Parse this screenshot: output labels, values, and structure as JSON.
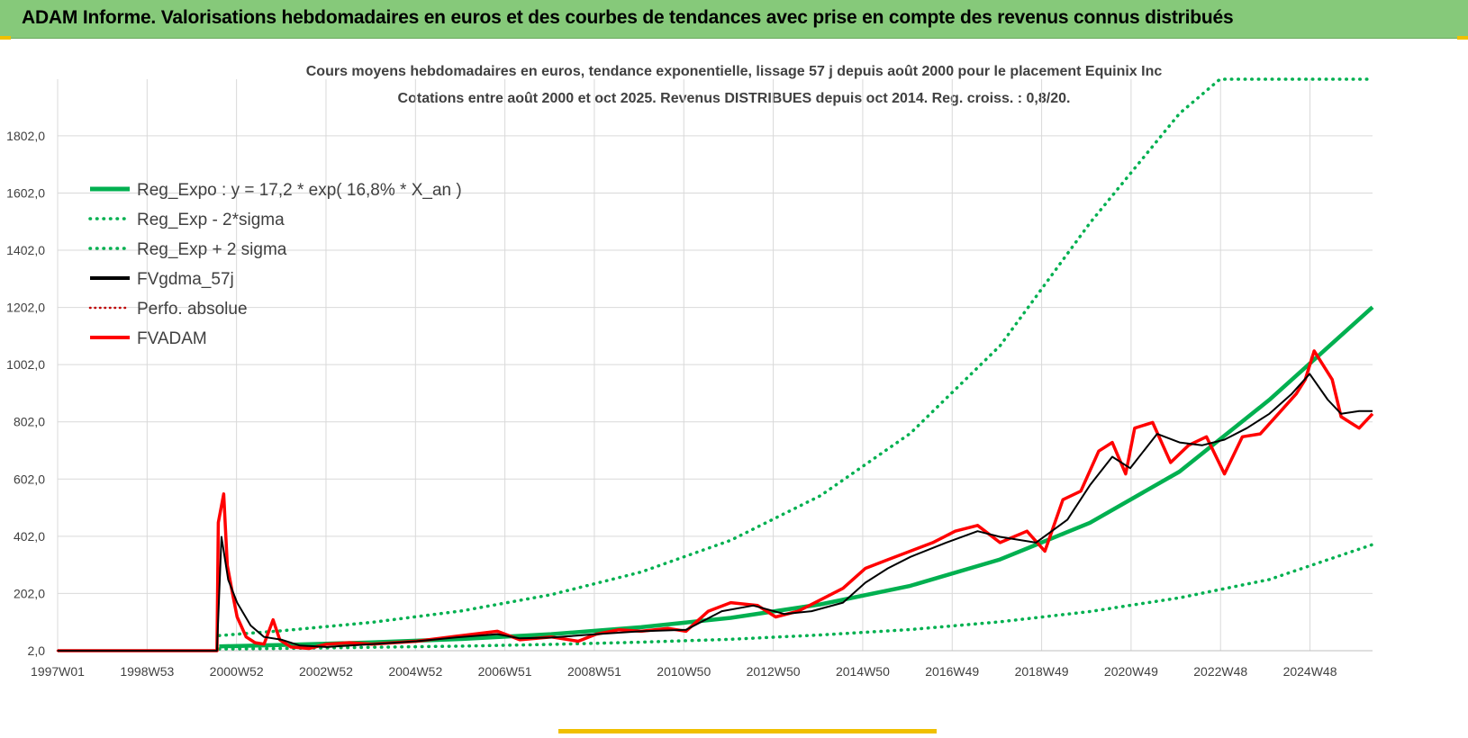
{
  "header": {
    "title": "ADAM Informe. Valorisations hebdomadaires en euros et des courbes de tendances avec prise en compte des revenus connus distribués"
  },
  "colors": {
    "header_bg": "#86c97a",
    "reg_green": "#00b050",
    "fv_red": "#ff0000",
    "smooth_black": "#000000",
    "perfo_red": "#c00000",
    "grid": "#d9d9d9"
  },
  "chart_data": {
    "type": "line",
    "title": "Cours moyens hebdomadaires en euros, tendance exponentielle, lissage 57 j depuis août 2000 pour le placement Equinix Inc",
    "subtitle": "Cotations entre août 2000 et oct 2025. Revenus DISTRIBUES depuis oct 2014. Reg. croiss. : 0,8/20.",
    "xlabel": "",
    "ylabel": "",
    "x_tick_labels": [
      "1997W01",
      "1998W53",
      "2000W52",
      "2002W52",
      "2004W52",
      "2006W51",
      "2008W51",
      "2010W50",
      "2012W50",
      "2014W50",
      "2016W49",
      "2018W49",
      "2020W49",
      "2022W48",
      "2024W48"
    ],
    "y_tick_labels": [
      "2,0",
      "202,0",
      "402,0",
      "602,0",
      "802,0",
      "1002,0",
      "1202,0",
      "1402,0",
      "1602,0",
      "1802,0"
    ],
    "xlim": [
      1997.0,
      2026.3
    ],
    "ylim": [
      2,
      2000
    ],
    "grid": true,
    "legend_position": "top-left",
    "series": [
      {
        "name": "Reg_Expo : y = 17,2 * exp( 16,8% *  X_an )",
        "style": "solid",
        "color": "#00b050",
        "x": [
          2000.6,
          2002,
          2004,
          2006,
          2008,
          2010,
          2012,
          2014,
          2016,
          2018,
          2020,
          2022,
          2024,
          2026.3
        ],
        "values": [
          17,
          22,
          31,
          43,
          60,
          84,
          117,
          164,
          229,
          321,
          449,
          628,
          879,
          1203
        ]
      },
      {
        "name": "Reg_Exp - 2*sigma",
        "style": "dotted",
        "color": "#00b050",
        "x": [
          2000.6,
          2002,
          2004,
          2006,
          2008,
          2010,
          2012,
          2014,
          2016,
          2018,
          2020,
          2022,
          2024,
          2026.3
        ],
        "values": [
          8,
          10,
          14,
          18,
          24,
          32,
          42,
          57,
          76,
          103,
          139,
          187,
          251,
          373
        ]
      },
      {
        "name": "Reg_Exp + 2 sigma",
        "style": "dotted",
        "color": "#00b050",
        "x": [
          2000.6,
          2002,
          2004,
          2006,
          2008,
          2010,
          2012,
          2014,
          2016,
          2018,
          2020,
          2022,
          2022.9,
          2026.3
        ],
        "values": [
          55,
          72,
          101,
          141,
          198,
          277,
          388,
          544,
          762,
          1068,
          1497,
          1880,
          2000,
          2000
        ]
      },
      {
        "name": "FVgdma_57j",
        "style": "solid",
        "color": "#000000",
        "x": [
          1997.0,
          2000.55,
          2000.65,
          2000.8,
          2001.0,
          2001.3,
          2001.6,
          2002.0,
          2002.4,
          2003.0,
          2004.0,
          2005.0,
          2006.0,
          2006.8,
          2007.3,
          2008.0,
          2009.0,
          2010.0,
          2011.0,
          2011.8,
          2012.5,
          2013.2,
          2013.8,
          2014.5,
          2015.0,
          2015.5,
          2016.0,
          2016.8,
          2017.5,
          2018.0,
          2018.8,
          2019.5,
          2020.0,
          2020.5,
          2020.9,
          2021.5,
          2022.0,
          2022.5,
          2023.0,
          2023.5,
          2024.0,
          2024.5,
          2024.9,
          2025.3,
          2025.6,
          2026.0,
          2026.3
        ],
        "values": [
          2,
          2,
          400,
          250,
          170,
          90,
          50,
          40,
          20,
          15,
          25,
          35,
          50,
          60,
          45,
          48,
          60,
          70,
          75,
          140,
          160,
          130,
          140,
          170,
          240,
          290,
          330,
          380,
          420,
          400,
          380,
          460,
          580,
          680,
          640,
          760,
          730,
          720,
          740,
          780,
          830,
          900,
          970,
          880,
          830,
          840,
          840
        ]
      },
      {
        "name": "Perfo. absolue",
        "style": "dotted",
        "color": "#c00000",
        "x": [
          1997.0,
          2000.55
        ],
        "values": [
          2,
          2
        ]
      },
      {
        "name": "FVADAM",
        "style": "solid",
        "color": "#ff0000",
        "x": [
          1997.0,
          2000.55,
          2000.58,
          2000.7,
          2000.78,
          2000.9,
          2001.0,
          2001.2,
          2001.4,
          2001.6,
          2001.8,
          2001.95,
          2002.2,
          2002.6,
          2003.0,
          2003.5,
          2004.0,
          2005.0,
          2006.0,
          2006.8,
          2007.3,
          2008.0,
          2008.6,
          2009.0,
          2009.5,
          2010.0,
          2010.6,
          2011.0,
          2011.5,
          2012.0,
          2012.6,
          2013.0,
          2013.5,
          2014.0,
          2014.5,
          2015.0,
          2015.5,
          2016.0,
          2016.5,
          2017.0,
          2017.5,
          2018.0,
          2018.6,
          2019.0,
          2019.4,
          2019.8,
          2020.2,
          2020.5,
          2020.8,
          2021.0,
          2021.4,
          2021.8,
          2022.2,
          2022.6,
          2023.0,
          2023.4,
          2023.8,
          2024.2,
          2024.6,
          2024.8,
          2025.0,
          2025.2,
          2025.4,
          2025.6,
          2025.8,
          2026.0,
          2026.3
        ],
        "values": [
          2,
          2,
          450,
          550,
          300,
          200,
          120,
          50,
          30,
          25,
          110,
          40,
          15,
          10,
          25,
          30,
          25,
          35,
          55,
          70,
          40,
          50,
          35,
          60,
          75,
          70,
          80,
          70,
          140,
          170,
          160,
          120,
          140,
          180,
          220,
          290,
          320,
          350,
          380,
          420,
          440,
          380,
          420,
          350,
          530,
          560,
          700,
          730,
          620,
          780,
          800,
          660,
          720,
          750,
          620,
          750,
          760,
          830,
          900,
          950,
          1050,
          1000,
          950,
          820,
          800,
          780,
          830
        ]
      }
    ]
  }
}
